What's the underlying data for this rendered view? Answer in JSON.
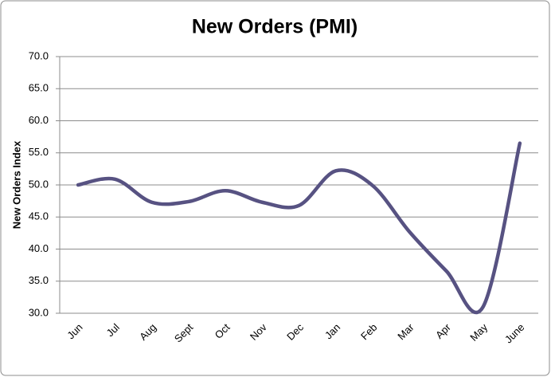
{
  "chart_data": {
    "type": "line",
    "title": "New Orders (PMI)",
    "y_label": "New Orders Index",
    "categories": [
      "Jun",
      "Jul",
      "Aug",
      "Sept",
      "Oct",
      "Nov",
      "Dec",
      "Jan",
      "Feb",
      "Mar",
      "Apr",
      "May",
      "June"
    ],
    "values": [
      50.0,
      50.9,
      47.3,
      47.4,
      49.1,
      47.3,
      46.8,
      52.2,
      49.9,
      42.7,
      36.6,
      31.0,
      56.5
    ],
    "color": "#575282",
    "smooth": true,
    "grid": true,
    "ylim": [
      30,
      70
    ],
    "yticks": [
      {
        "value": 30,
        "label": "30.0"
      },
      {
        "value": 35,
        "label": "35.0"
      },
      {
        "value": 40,
        "label": "40.0"
      },
      {
        "value": 45,
        "label": "45.0"
      },
      {
        "value": 50,
        "label": "50.0"
      },
      {
        "value": 55,
        "label": "55.0"
      },
      {
        "value": 60,
        "label": "60.0"
      },
      {
        "value": 65,
        "label": "65.0"
      },
      {
        "value": 70,
        "label": "70.0"
      }
    ]
  }
}
